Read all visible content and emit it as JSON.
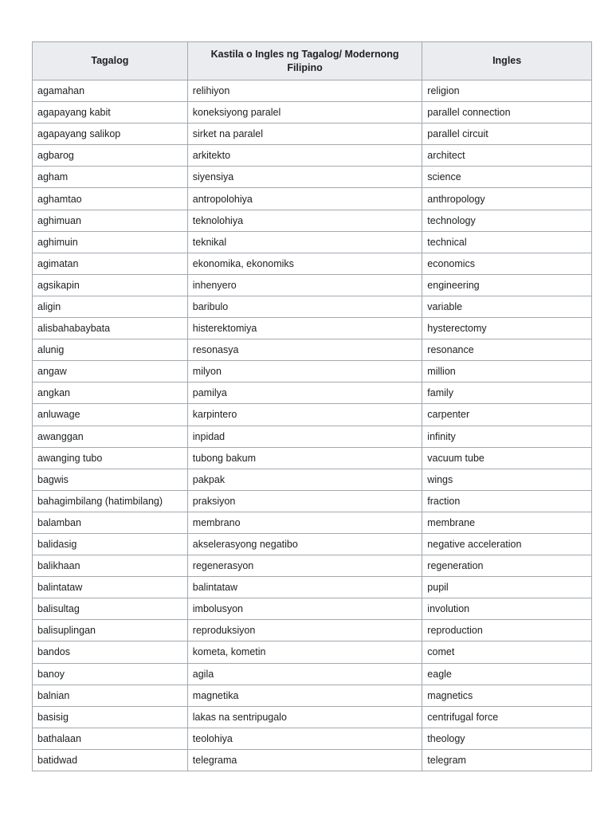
{
  "table": {
    "headers": [
      "Tagalog",
      "Kastila o Ingles ng Tagalog/ Modernong Filipino",
      "Ingles"
    ],
    "rows": [
      [
        "agamahan",
        "relihiyon",
        "religion"
      ],
      [
        "agapayang kabit",
        "koneksiyong paralel",
        "parallel connection"
      ],
      [
        "agapayang salikop",
        "sirket na paralel",
        "parallel circuit"
      ],
      [
        "agbarog",
        "arkitekto",
        "architect"
      ],
      [
        "agham",
        "siyensiya",
        "science"
      ],
      [
        "aghamtao",
        "antropolohiya",
        "anthropology"
      ],
      [
        "aghimuan",
        "teknolohiya",
        "technology"
      ],
      [
        "aghimuin",
        "teknikal",
        "technical"
      ],
      [
        "agimatan",
        "ekonomika, ekonomiks",
        "economics"
      ],
      [
        "agsikapin",
        "inhenyero",
        "engineering"
      ],
      [
        "aligin",
        "baribulo",
        "variable"
      ],
      [
        "alisbahabaybata",
        "histerektomiya",
        "hysterectomy"
      ],
      [
        "alunig",
        "resonasya",
        "resonance"
      ],
      [
        "angaw",
        "milyon",
        "million"
      ],
      [
        "angkan",
        "pamilya",
        "family"
      ],
      [
        "anluwage",
        "karpintero",
        "carpenter"
      ],
      [
        "awanggan",
        "inpidad",
        "infinity"
      ],
      [
        "awanging tubo",
        "tubong bakum",
        "vacuum tube"
      ],
      [
        "bagwis",
        "pakpak",
        "wings"
      ],
      [
        "bahagimbilang (hatimbilang)",
        "praksiyon",
        "fraction"
      ],
      [
        "balamban",
        "membrano",
        "membrane"
      ],
      [
        "balidasig",
        "akselerasyong negatibo",
        "negative acceleration"
      ],
      [
        "balikhaan",
        "regenerasyon",
        "regeneration"
      ],
      [
        "balintataw",
        "balintataw",
        "pupil"
      ],
      [
        "balisultag",
        "imbolusyon",
        "involution"
      ],
      [
        "balisuplingan",
        "reproduksiyon",
        "reproduction"
      ],
      [
        "bandos",
        "kometa, kometin",
        "comet"
      ],
      [
        "banoy",
        "agila",
        "eagle"
      ],
      [
        "balnian",
        "magnetika",
        "magnetics"
      ],
      [
        "basisig",
        "lakas na sentripugalo",
        "centrifugal force"
      ],
      [
        "bathalaan",
        "teolohiya",
        "theology"
      ],
      [
        "batidwad",
        "telegrama",
        "telegram"
      ]
    ]
  },
  "colors": {
    "header_bg": "#eaecf0",
    "border": "#a2a9b1",
    "text": "#202122"
  }
}
